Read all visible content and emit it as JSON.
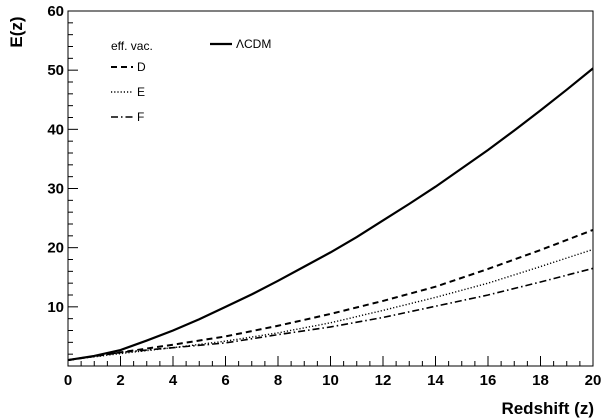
{
  "chart_data": {
    "type": "line",
    "xlabel": "Redshift (z)",
    "ylabel": "E(z)",
    "xlim": [
      0,
      20
    ],
    "ylim": [
      0,
      60
    ],
    "x_ticks": [
      0,
      2,
      4,
      6,
      8,
      10,
      12,
      14,
      16,
      18,
      20
    ],
    "y_ticks": [
      10,
      20,
      30,
      40,
      50,
      60
    ],
    "grid": false,
    "legend_placement": "top-left",
    "legend_title": "eff. vac.",
    "series": [
      {
        "name": "ΛCDM",
        "style": "solid",
        "x": [
          0,
          1,
          2,
          3,
          4,
          5,
          6,
          7,
          8,
          9,
          10,
          11,
          12,
          13,
          14,
          15,
          16,
          17,
          18,
          19,
          20
        ],
        "y": [
          1.0,
          1.7,
          2.7,
          4.3,
          6.0,
          7.9,
          10.0,
          12.1,
          14.4,
          16.8,
          19.2,
          21.8,
          24.6,
          27.4,
          30.3,
          33.4,
          36.5,
          39.8,
          43.2,
          46.7,
          50.3
        ]
      },
      {
        "name": "D",
        "style": "dashed",
        "x": [
          0,
          2,
          4,
          6,
          8,
          10,
          12,
          14,
          16,
          18,
          20
        ],
        "y": [
          1.0,
          2.3,
          3.6,
          5.0,
          6.8,
          8.8,
          11.0,
          13.4,
          16.4,
          19.6,
          23.0
        ]
      },
      {
        "name": "E",
        "style": "dotted",
        "x": [
          0,
          2,
          4,
          6,
          8,
          10,
          12,
          14,
          16,
          18,
          20
        ],
        "y": [
          1.0,
          2.1,
          3.1,
          4.2,
          5.6,
          7.3,
          9.4,
          11.6,
          14.0,
          16.8,
          19.7
        ]
      },
      {
        "name": "F",
        "style": "dash-dot",
        "x": [
          0,
          2,
          4,
          6,
          8,
          10,
          12,
          14,
          16,
          18,
          20
        ],
        "y": [
          1.0,
          2.3,
          3.1,
          3.9,
          5.3,
          6.6,
          8.2,
          10.1,
          12.0,
          14.2,
          16.5
        ]
      }
    ]
  }
}
